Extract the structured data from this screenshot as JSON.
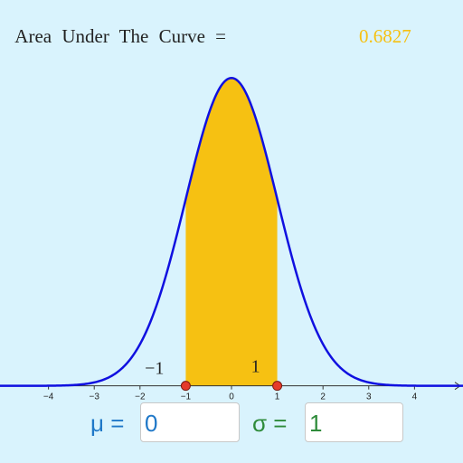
{
  "chart_data": {
    "type": "normal",
    "title": "Area Under The Curve =",
    "area": 0.6827,
    "mu_label": "μ =",
    "mu": 0,
    "sigma_label": "σ =",
    "sigma": 1,
    "lower": {
      "value": -1,
      "label": "−1"
    },
    "upper": 1,
    "xlim": [
      -5.06,
      5.06
    ],
    "ylim": [
      -0.1,
      0.5
    ],
    "xticks": [
      {
        "value": -4,
        "label": "−4"
      },
      {
        "value": -3,
        "label": "−3"
      },
      {
        "value": -2,
        "label": "−2"
      },
      {
        "value": -1,
        "label": "−1"
      },
      0,
      1,
      2,
      3,
      4
    ],
    "curve_color": "#1010e0",
    "fill_color": "#f6c112",
    "point_color": "#e53a2a",
    "mu_color": "#1f78c8",
    "sigma_color": "#2e8b3a"
  }
}
